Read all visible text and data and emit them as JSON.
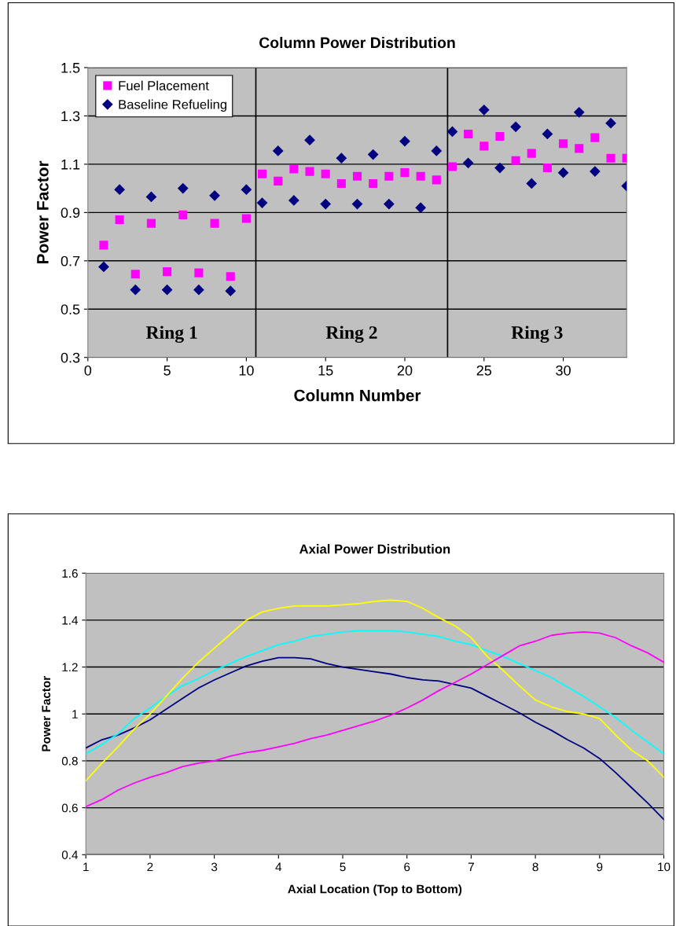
{
  "chart_data": [
    {
      "type": "scatter",
      "title": "Column Power Distribution",
      "xlabel": "Column Number",
      "ylabel": "Power Factor",
      "x": [
        1,
        2,
        3,
        4,
        5,
        6,
        7,
        8,
        9,
        10,
        11,
        12,
        13,
        14,
        15,
        16,
        17,
        18,
        19,
        20,
        21,
        22,
        23,
        24,
        25,
        26,
        27,
        28,
        29,
        30,
        31,
        32,
        33,
        34
      ],
      "series": [
        {
          "name": "Fuel Placement",
          "color": "#ff00ff",
          "marker": "square",
          "values": [
            0.765,
            0.87,
            0.645,
            0.855,
            0.655,
            0.89,
            0.65,
            0.855,
            0.635,
            0.875,
            1.06,
            1.03,
            1.08,
            1.07,
            1.06,
            1.02,
            1.05,
            1.02,
            1.05,
            1.065,
            1.05,
            1.035,
            1.09,
            1.225,
            1.175,
            1.215,
            1.115,
            1.145,
            1.085,
            1.185,
            1.165,
            1.21,
            1.125,
            1.125
          ]
        },
        {
          "name": "Baseline Refueling",
          "color": "#000080",
          "marker": "diamond",
          "values": [
            0.675,
            0.995,
            0.58,
            0.965,
            0.58,
            1.0,
            0.58,
            0.97,
            0.575,
            0.995,
            0.94,
            1.155,
            0.95,
            1.2,
            0.935,
            1.125,
            0.935,
            1.14,
            0.935,
            1.195,
            0.92,
            1.155,
            1.235,
            1.105,
            1.325,
            1.085,
            1.255,
            1.02,
            1.225,
            1.065,
            1.315,
            1.07,
            1.27,
            1.01
          ]
        }
      ],
      "xlim": [
        0,
        34
      ],
      "xticks": [
        0,
        5,
        10,
        15,
        20,
        25,
        30
      ],
      "ylim": [
        0.3,
        1.5
      ],
      "yticks": [
        0.3,
        0.5,
        0.7,
        0.9,
        1.1,
        1.3,
        1.5
      ],
      "grid": "y",
      "legend": "top left",
      "ref_lines": [
        {
          "axis": "x",
          "value": 10.6,
          "color": "#000000"
        },
        {
          "axis": "x",
          "value": 22.7,
          "color": "#000000"
        }
      ],
      "annotations": [
        "Ring 1",
        "Ring 2",
        "Ring 3"
      ]
    },
    {
      "type": "line",
      "title": "Axial Power Distribution",
      "xlabel": "Axial Location (Top to Bottom)",
      "ylabel": "Power Factor",
      "x": [
        1,
        1.25,
        1.5,
        1.75,
        2,
        2.25,
        2.5,
        2.75,
        3,
        3.25,
        3.5,
        3.75,
        4,
        4.25,
        4.5,
        4.75,
        5,
        5.25,
        5.5,
        5.75,
        6,
        6.25,
        6.5,
        6.75,
        7,
        7.25,
        7.5,
        7.75,
        8,
        8.25,
        8.5,
        8.75,
        9,
        9.25,
        9.5,
        9.75,
        10
      ],
      "series": [
        {
          "color": "#000080",
          "values": [
            0.855,
            0.89,
            0.91,
            0.94,
            0.975,
            1.02,
            1.065,
            1.11,
            1.145,
            1.175,
            1.205,
            1.225,
            1.24,
            1.24,
            1.235,
            1.215,
            1.2,
            1.19,
            1.18,
            1.17,
            1.155,
            1.145,
            1.14,
            1.125,
            1.11,
            1.075,
            1.04,
            1.005,
            0.965,
            0.93,
            0.89,
            0.855,
            0.81,
            0.75,
            0.685,
            0.62,
            0.55
          ]
        },
        {
          "color": "#00ffff",
          "values": [
            0.83,
            0.87,
            0.915,
            0.98,
            1.025,
            1.075,
            1.12,
            1.15,
            1.185,
            1.215,
            1.245,
            1.27,
            1.295,
            1.31,
            1.33,
            1.34,
            1.35,
            1.355,
            1.355,
            1.355,
            1.35,
            1.34,
            1.33,
            1.31,
            1.295,
            1.27,
            1.245,
            1.215,
            1.185,
            1.155,
            1.115,
            1.075,
            1.03,
            0.985,
            0.93,
            0.88,
            0.83
          ]
        },
        {
          "color": "#ffff00",
          "values": [
            0.715,
            0.79,
            0.86,
            0.935,
            1.0,
            1.075,
            1.15,
            1.22,
            1.28,
            1.34,
            1.4,
            1.435,
            1.45,
            1.46,
            1.46,
            1.46,
            1.465,
            1.47,
            1.48,
            1.485,
            1.48,
            1.45,
            1.41,
            1.375,
            1.325,
            1.245,
            1.185,
            1.12,
            1.06,
            1.03,
            1.01,
            1.0,
            0.98,
            0.91,
            0.845,
            0.8,
            0.73
          ]
        },
        {
          "color": "#ff00ff",
          "values": [
            0.605,
            0.635,
            0.675,
            0.705,
            0.73,
            0.75,
            0.775,
            0.79,
            0.8,
            0.82,
            0.835,
            0.845,
            0.86,
            0.875,
            0.895,
            0.91,
            0.93,
            0.95,
            0.97,
            0.995,
            1.025,
            1.06,
            1.1,
            1.135,
            1.17,
            1.21,
            1.25,
            1.29,
            1.31,
            1.335,
            1.345,
            1.35,
            1.345,
            1.325,
            1.29,
            1.26,
            1.22
          ]
        }
      ],
      "xlim": [
        1,
        10
      ],
      "xticks": [
        1,
        2,
        3,
        4,
        5,
        6,
        7,
        8,
        9,
        10
      ],
      "ylim": [
        0.4,
        1.6
      ],
      "yticks": [
        0.4,
        0.6,
        0.8,
        1,
        1.2,
        1.4,
        1.6
      ],
      "grid": "y",
      "line_style": "solid",
      "marker": "none"
    }
  ]
}
